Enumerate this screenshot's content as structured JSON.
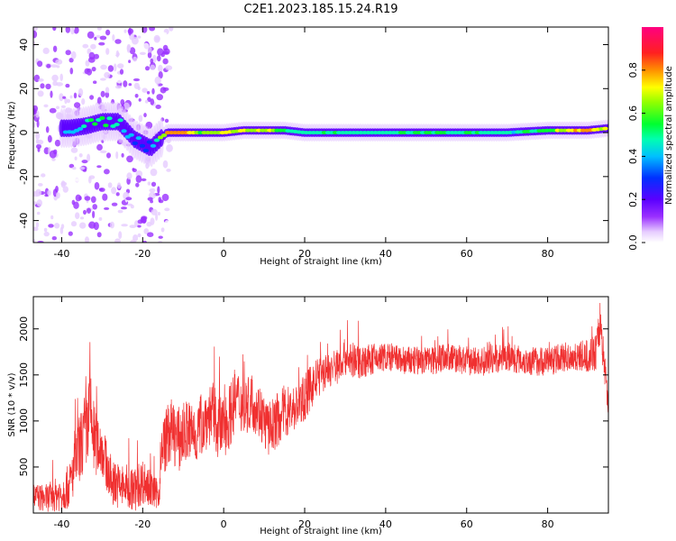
{
  "title": "C2E1.2023.185.15.24.R19",
  "chart_data": [
    {
      "type": "heatmap",
      "xlabel": "Height of straight line (km)",
      "ylabel": "Frequency (Hz)",
      "xlim": [
        -47,
        95
      ],
      "ylim": [
        -50,
        48
      ],
      "xticks": [
        -40,
        -20,
        0,
        20,
        40,
        60,
        80
      ],
      "yticks": [
        -40,
        -20,
        0,
        20,
        40
      ],
      "colorbar": {
        "label": "Normalized spectral amplitude",
        "range": [
          0.0,
          1.0
        ],
        "ticks": [
          0.0,
          0.2,
          0.4,
          0.6,
          0.8
        ],
        "tick_labels": [
          "0.0",
          "0.2",
          "0.4",
          "0.6",
          "0.8"
        ],
        "colormap": "rainbow (white-violet-blue-cyan-green-yellow-red-magenta)"
      },
      "ridge": [
        {
          "x": -38,
          "y": 2,
          "amp": 0.45
        },
        {
          "x": -34,
          "y": 3,
          "amp": 0.55
        },
        {
          "x": -30,
          "y": 5,
          "amp": 0.6
        },
        {
          "x": -26,
          "y": 5,
          "amp": 0.55
        },
        {
          "x": -22,
          "y": -3,
          "amp": 0.45
        },
        {
          "x": -18,
          "y": -7,
          "amp": 0.4
        },
        {
          "x": -14,
          "y": 0,
          "amp": 0.9
        },
        {
          "x": -10,
          "y": 0,
          "amp": 0.9
        },
        {
          "x": -5,
          "y": 0,
          "amp": 0.7
        },
        {
          "x": 0,
          "y": 0,
          "amp": 0.85
        },
        {
          "x": 5,
          "y": 1,
          "amp": 0.75
        },
        {
          "x": 10,
          "y": 1,
          "amp": 0.8
        },
        {
          "x": 15,
          "y": 1,
          "amp": 0.6
        },
        {
          "x": 20,
          "y": 0,
          "amp": 0.55
        },
        {
          "x": 30,
          "y": 0,
          "amp": 0.6
        },
        {
          "x": 40,
          "y": 0,
          "amp": 0.55
        },
        {
          "x": 50,
          "y": 0,
          "amp": 0.6
        },
        {
          "x": 60,
          "y": 0,
          "amp": 0.6
        },
        {
          "x": 70,
          "y": 0,
          "amp": 0.55
        },
        {
          "x": 80,
          "y": 1,
          "amp": 0.6
        },
        {
          "x": 85,
          "y": 1,
          "amp": 0.85
        },
        {
          "x": 90,
          "y": 1,
          "amp": 0.9
        },
        {
          "x": 95,
          "y": 2,
          "amp": 0.7
        }
      ]
    },
    {
      "type": "line",
      "xlabel": "Height of straight line (km)",
      "ylabel": "SNR (10 * v/v)",
      "xlim": [
        -47,
        95
      ],
      "ylim": [
        0,
        2350
      ],
      "xticks": [
        -40,
        -20,
        0,
        20,
        40,
        60,
        80
      ],
      "yticks": [
        500,
        1000,
        1500,
        2000
      ],
      "color": "#f03030",
      "series": [
        {
          "x": [
            -47,
            -44,
            -40,
            -38,
            -36,
            -34,
            -33,
            -32,
            -30,
            -28,
            -26,
            -24,
            -22,
            -20,
            -18,
            -16,
            -15,
            -13,
            -11,
            -9,
            -7,
            -5,
            -3,
            -1,
            1,
            3,
            5,
            7,
            9,
            11,
            13,
            15,
            18,
            20,
            22,
            24,
            26,
            28,
            30,
            32,
            35,
            40,
            45,
            50,
            55,
            60,
            65,
            70,
            75,
            80,
            85,
            90,
            92,
            93,
            94,
            95
          ],
          "y": [
            180,
            160,
            220,
            300,
            650,
            900,
            1100,
            800,
            700,
            350,
            300,
            280,
            250,
            350,
            250,
            200,
            750,
            900,
            800,
            900,
            850,
            1000,
            1100,
            900,
            1000,
            1250,
            1150,
            1200,
            1100,
            900,
            1000,
            1100,
            1150,
            1250,
            1400,
            1500,
            1550,
            1600,
            1700,
            1650,
            1650,
            1700,
            1650,
            1650,
            1700,
            1650,
            1650,
            1700,
            1650,
            1650,
            1700,
            1700,
            1750,
            2100,
            1600,
            1200
          ],
          "spread": [
            150,
            150,
            200,
            250,
            350,
            450,
            500,
            400,
            300,
            250,
            250,
            250,
            250,
            250,
            200,
            150,
            350,
            350,
            350,
            350,
            350,
            350,
            350,
            350,
            350,
            350,
            300,
            300,
            300,
            300,
            300,
            300,
            250,
            250,
            250,
            200,
            200,
            200,
            200,
            200,
            180,
            160,
            160,
            160,
            160,
            160,
            160,
            160,
            160,
            160,
            160,
            180,
            200,
            250,
            200,
            150
          ]
        }
      ]
    }
  ]
}
